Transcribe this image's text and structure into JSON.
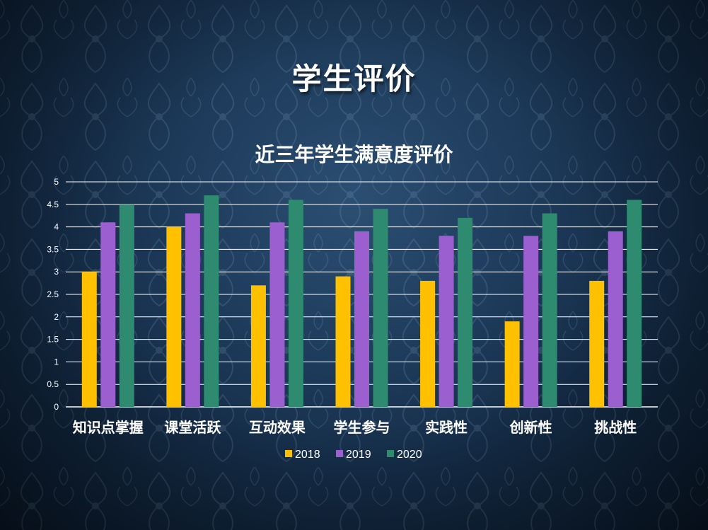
{
  "slide": {
    "title": "学生评价"
  },
  "chart_data": {
    "type": "bar",
    "title": "近三年学生满意度评价",
    "categories": [
      "知识点掌握",
      "课堂活跃",
      "互动效果",
      "学生参与",
      "实践性",
      "创新性",
      "挑战性"
    ],
    "series": [
      {
        "name": "2018",
        "color": "#FFC000",
        "values": [
          3.0,
          4.0,
          2.7,
          2.9,
          2.8,
          1.9,
          2.8
        ]
      },
      {
        "name": "2019",
        "color": "#9B5FD0",
        "values": [
          4.1,
          4.3,
          4.1,
          3.9,
          3.8,
          3.8,
          3.9
        ]
      },
      {
        "name": "2020",
        "color": "#2E8B70",
        "values": [
          4.5,
          4.7,
          4.6,
          4.4,
          4.2,
          4.3,
          4.6
        ]
      }
    ],
    "yticks": [
      "0",
      "0.5",
      "1",
      "1.5",
      "2",
      "2.5",
      "3",
      "3.5",
      "4",
      "4.5",
      "5"
    ],
    "ylim": [
      0,
      5
    ],
    "grid": true,
    "legend_position": "bottom"
  }
}
